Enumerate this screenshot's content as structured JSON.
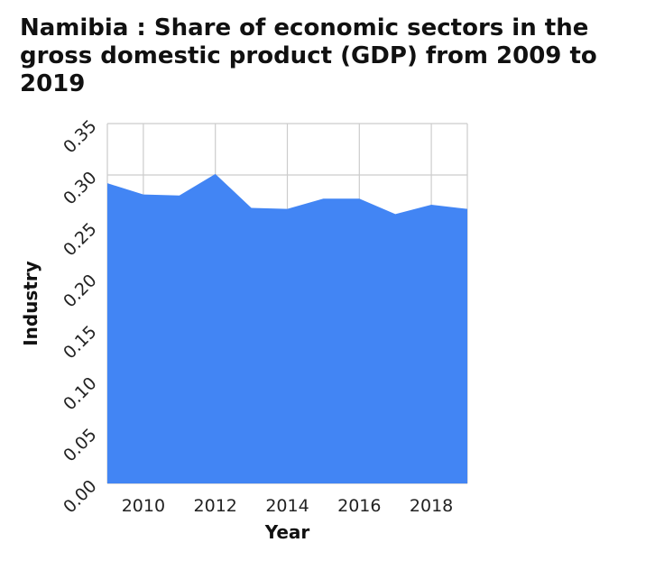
{
  "chart_data": {
    "type": "area",
    "title": "Namibia : Share of economic sectors in the gross domestic product (GDP) from 2009 to 2019",
    "xlabel": "Year",
    "ylabel": "Industry",
    "x": [
      2009,
      2010,
      2011,
      2012,
      2013,
      2014,
      2015,
      2016,
      2017,
      2018,
      2019
    ],
    "series": [
      {
        "name": "Industry",
        "values": [
          0.292,
          0.281,
          0.28,
          0.301,
          0.268,
          0.267,
          0.277,
          0.277,
          0.262,
          0.271,
          0.267
        ]
      }
    ],
    "xlim": [
      2009,
      2019
    ],
    "ylim": [
      0,
      0.35
    ],
    "x_ticks": [
      "2010",
      "2012",
      "2014",
      "2016",
      "2018"
    ],
    "y_ticks": [
      "0.00",
      "0.05",
      "0.10",
      "0.15",
      "0.20",
      "0.25",
      "0.30",
      "0.35"
    ],
    "grid": true,
    "fill_color": "#4285f4",
    "grid_color": "#cccccc"
  }
}
